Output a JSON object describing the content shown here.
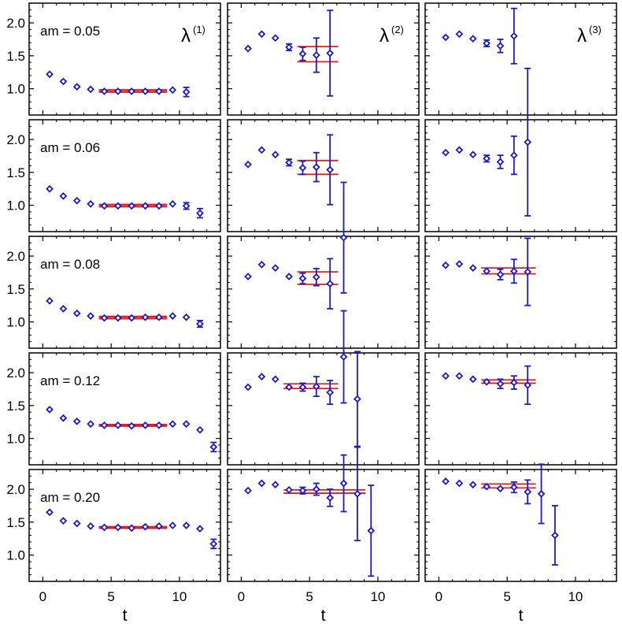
{
  "chart_data": {
    "type": "scatter",
    "layout": "grid of 5 rows by 3 columns, shared axes",
    "xlabel": "t",
    "xlim": [
      -1,
      13
    ],
    "ylim": [
      0.6,
      2.3
    ],
    "x_ticks": [
      0,
      5,
      10
    ],
    "y_ticks": [
      1.0,
      1.5,
      2.0
    ],
    "y_tick_labels": [
      "1.0",
      "1.5",
      "2.0"
    ],
    "x_tick_labels": [
      "0",
      "5",
      "10"
    ],
    "columns": [
      {
        "label": "λ",
        "superscript": "(1)"
      },
      {
        "label": "λ",
        "superscript": "(2)"
      },
      {
        "label": "λ",
        "superscript": "(3)"
      }
    ],
    "colors": {
      "points": "#1a1acc",
      "fit": "#e02020",
      "frame": "#000000"
    },
    "rows": [
      {
        "label": "am = 0.05",
        "panels": [
          {
            "points": [
              [
                0.5,
                1.22,
                0.01
              ],
              [
                1.5,
                1.11,
                0.01
              ],
              [
                2.5,
                1.03,
                0.01
              ],
              [
                3.5,
                0.99,
                0.01
              ],
              [
                4.5,
                0.96,
                0.02
              ],
              [
                5.5,
                0.96,
                0.02
              ],
              [
                6.5,
                0.96,
                0.02
              ],
              [
                7.5,
                0.96,
                0.02
              ],
              [
                8.5,
                0.96,
                0.03
              ],
              [
                9.5,
                0.98,
                0.04
              ],
              [
                10.5,
                0.95,
                0.07
              ]
            ],
            "fit": {
              "x": [
                4.1,
                9.1
              ],
              "band": [
                0.95,
                0.98
              ],
              "thick": true
            }
          },
          {
            "points": [
              [
                0.5,
                1.61,
                0.01
              ],
              [
                1.5,
                1.83,
                0.02
              ],
              [
                2.5,
                1.77,
                0.02
              ],
              [
                3.5,
                1.63,
                0.05
              ],
              [
                4.5,
                1.53,
                0.1
              ],
              [
                5.5,
                1.51,
                0.26
              ],
              [
                6.5,
                1.54,
                0.65
              ]
            ],
            "fit": {
              "x": [
                4.1,
                7.1
              ],
              "band": [
                1.41,
                1.64
              ],
              "thick": false
            }
          },
          {
            "points": [
              [
                0.5,
                1.78,
                0.01
              ],
              [
                1.5,
                1.83,
                0.02
              ],
              [
                2.5,
                1.76,
                0.02
              ],
              [
                3.5,
                1.69,
                0.05
              ],
              [
                4.5,
                1.65,
                0.1
              ],
              [
                5.5,
                1.8,
                0.42
              ]
            ],
            "fit": null
          }
        ]
      },
      {
        "label": "am = 0.06",
        "panels": [
          {
            "points": [
              [
                0.5,
                1.25,
                0.01
              ],
              [
                1.5,
                1.14,
                0.01
              ],
              [
                2.5,
                1.07,
                0.01
              ],
              [
                3.5,
                1.02,
                0.01
              ],
              [
                4.5,
                0.99,
                0.02
              ],
              [
                5.5,
                0.99,
                0.02
              ],
              [
                6.5,
                0.99,
                0.02
              ],
              [
                7.5,
                0.99,
                0.02
              ],
              [
                8.5,
                0.99,
                0.03
              ],
              [
                9.5,
                1.02,
                0.03
              ],
              [
                10.5,
                0.99,
                0.05
              ],
              [
                11.5,
                0.88,
                0.07
              ]
            ],
            "fit": {
              "x": [
                4.1,
                9.1
              ],
              "band": [
                0.98,
                1.01
              ],
              "thick": true
            }
          },
          {
            "points": [
              [
                0.5,
                1.62,
                0.01
              ],
              [
                1.5,
                1.84,
                0.02
              ],
              [
                2.5,
                1.77,
                0.02
              ],
              [
                3.5,
                1.65,
                0.05
              ],
              [
                4.5,
                1.57,
                0.1
              ],
              [
                5.5,
                1.58,
                0.22
              ],
              [
                6.5,
                1.54,
                0.53
              ]
            ],
            "fit": {
              "x": [
                4.1,
                7.1
              ],
              "band": [
                1.47,
                1.68
              ],
              "thick": false
            }
          },
          {
            "points": [
              [
                0.5,
                1.8,
                0.01
              ],
              [
                1.5,
                1.84,
                0.02
              ],
              [
                2.5,
                1.77,
                0.02
              ],
              [
                3.5,
                1.71,
                0.05
              ],
              [
                4.5,
                1.66,
                0.1
              ],
              [
                5.5,
                1.76,
                0.29
              ],
              [
                6.5,
                1.96,
                1.12
              ]
            ],
            "fit": null
          }
        ]
      },
      {
        "label": "am = 0.08",
        "panels": [
          {
            "points": [
              [
                0.5,
                1.32,
                0.01
              ],
              [
                1.5,
                1.2,
                0.01
              ],
              [
                2.5,
                1.13,
                0.01
              ],
              [
                3.5,
                1.09,
                0.01
              ],
              [
                4.5,
                1.06,
                0.02
              ],
              [
                5.5,
                1.06,
                0.02
              ],
              [
                6.5,
                1.06,
                0.02
              ],
              [
                7.5,
                1.07,
                0.02
              ],
              [
                8.5,
                1.07,
                0.02
              ],
              [
                9.5,
                1.09,
                0.02
              ],
              [
                10.5,
                1.07,
                0.04
              ],
              [
                11.5,
                0.97,
                0.05
              ]
            ],
            "fit": {
              "x": [
                4.1,
                9.1
              ],
              "band": [
                1.05,
                1.08
              ],
              "thick": true
            }
          },
          {
            "points": [
              [
                0.5,
                1.69,
                0.01
              ],
              [
                1.5,
                1.87,
                0.02
              ],
              [
                2.5,
                1.82,
                0.02
              ],
              [
                3.5,
                1.69,
                0.04
              ],
              [
                4.5,
                1.66,
                0.08
              ],
              [
                5.5,
                1.68,
                0.13
              ],
              [
                6.5,
                1.58,
                0.38
              ],
              [
                7.5,
                2.28,
                0.84
              ]
            ],
            "fit": {
              "x": [
                4.1,
                7.1
              ],
              "band": [
                1.57,
                1.76
              ],
              "thick": false
            }
          },
          {
            "points": [
              [
                0.5,
                1.86,
                0.01
              ],
              [
                1.5,
                1.88,
                0.02
              ],
              [
                2.5,
                1.82,
                0.02
              ],
              [
                3.5,
                1.77,
                0.04
              ],
              [
                4.5,
                1.72,
                0.08
              ],
              [
                5.5,
                1.77,
                0.18
              ],
              [
                6.5,
                1.76,
                0.51
              ]
            ],
            "fit": {
              "x": [
                3.1,
                7.1
              ],
              "band": [
                1.73,
                1.82
              ],
              "thick": false
            }
          }
        ]
      },
      {
        "label": "am = 0.12",
        "panels": [
          {
            "points": [
              [
                0.5,
                1.44,
                0.01
              ],
              [
                1.5,
                1.31,
                0.01
              ],
              [
                2.5,
                1.26,
                0.01
              ],
              [
                3.5,
                1.22,
                0.01
              ],
              [
                4.5,
                1.2,
                0.01
              ],
              [
                5.5,
                1.2,
                0.01
              ],
              [
                6.5,
                1.19,
                0.01
              ],
              [
                7.5,
                1.2,
                0.01
              ],
              [
                8.5,
                1.2,
                0.02
              ],
              [
                9.5,
                1.22,
                0.02
              ],
              [
                10.5,
                1.22,
                0.02
              ],
              [
                11.5,
                1.13,
                0.03
              ],
              [
                12.5,
                0.87,
                0.07
              ]
            ],
            "fit": {
              "x": [
                4.1,
                9.1
              ],
              "band": [
                1.19,
                1.21
              ],
              "thick": true
            }
          },
          {
            "points": [
              [
                0.5,
                1.78,
                0.01
              ],
              [
                1.5,
                1.94,
                0.02
              ],
              [
                2.5,
                1.9,
                0.02
              ],
              [
                3.5,
                1.78,
                0.03
              ],
              [
                4.5,
                1.78,
                0.06
              ],
              [
                5.5,
                1.79,
                0.15
              ],
              [
                6.5,
                1.7,
                0.18
              ],
              [
                7.5,
                2.24,
                0.7
              ],
              [
                8.5,
                1.6,
                0.72
              ]
            ],
            "fit": {
              "x": [
                3.1,
                7.1
              ],
              "band": [
                1.76,
                1.83
              ],
              "thick": false
            }
          },
          {
            "points": [
              [
                0.5,
                1.95,
                0.01
              ],
              [
                1.5,
                1.95,
                0.02
              ],
              [
                2.5,
                1.9,
                0.02
              ],
              [
                3.5,
                1.86,
                0.03
              ],
              [
                4.5,
                1.83,
                0.07
              ],
              [
                5.5,
                1.85,
                0.1
              ],
              [
                6.5,
                1.81,
                0.29
              ]
            ],
            "fit": {
              "x": [
                3.1,
                7.1
              ],
              "band": [
                1.84,
                1.89
              ],
              "thick": false
            }
          }
        ]
      },
      {
        "label": "am = 0.20",
        "panels": [
          {
            "points": [
              [
                0.5,
                1.65,
                0.01
              ],
              [
                1.5,
                1.52,
                0.01
              ],
              [
                2.5,
                1.48,
                0.01
              ],
              [
                3.5,
                1.44,
                0.01
              ],
              [
                4.5,
                1.42,
                0.01
              ],
              [
                5.5,
                1.42,
                0.01
              ],
              [
                6.5,
                1.41,
                0.01
              ],
              [
                7.5,
                1.43,
                0.01
              ],
              [
                8.5,
                1.44,
                0.01
              ],
              [
                9.5,
                1.45,
                0.01
              ],
              [
                10.5,
                1.45,
                0.01
              ],
              [
                11.5,
                1.4,
                0.02
              ],
              [
                12.5,
                1.17,
                0.07
              ]
            ],
            "fit": {
              "x": [
                4.1,
                9.1
              ],
              "band": [
                1.41,
                1.43
              ],
              "thick": true
            }
          },
          {
            "points": [
              [
                0.5,
                1.98,
                0.01
              ],
              [
                1.5,
                2.09,
                0.02
              ],
              [
                2.5,
                2.07,
                0.02
              ],
              [
                3.5,
                1.99,
                0.03
              ],
              [
                4.5,
                1.98,
                0.05
              ],
              [
                5.5,
                2.0,
                0.09
              ],
              [
                6.5,
                1.87,
                0.13
              ],
              [
                7.5,
                2.09,
                0.43
              ],
              [
                8.5,
                1.93,
                0.71
              ],
              [
                9.5,
                1.37,
                0.69
              ]
            ],
            "fit": {
              "x": [
                3.1,
                9.1
              ],
              "band": [
                1.94,
                1.99
              ],
              "thick": false
            }
          },
          {
            "points": [
              [
                0.5,
                2.12,
                0.01
              ],
              [
                1.5,
                2.09,
                0.02
              ],
              [
                2.5,
                2.07,
                0.02
              ],
              [
                3.5,
                2.04,
                0.03
              ],
              [
                4.5,
                2.01,
                0.04
              ],
              [
                5.5,
                2.03,
                0.08
              ],
              [
                6.5,
                1.96,
                0.18
              ],
              [
                7.5,
                1.93,
                0.45
              ],
              [
                8.5,
                1.3,
                0.45
              ]
            ],
            "fit": {
              "x": [
                3.1,
                7.1
              ],
              "band": [
                2.02,
                2.08
              ],
              "thick": false
            }
          }
        ]
      }
    ]
  }
}
